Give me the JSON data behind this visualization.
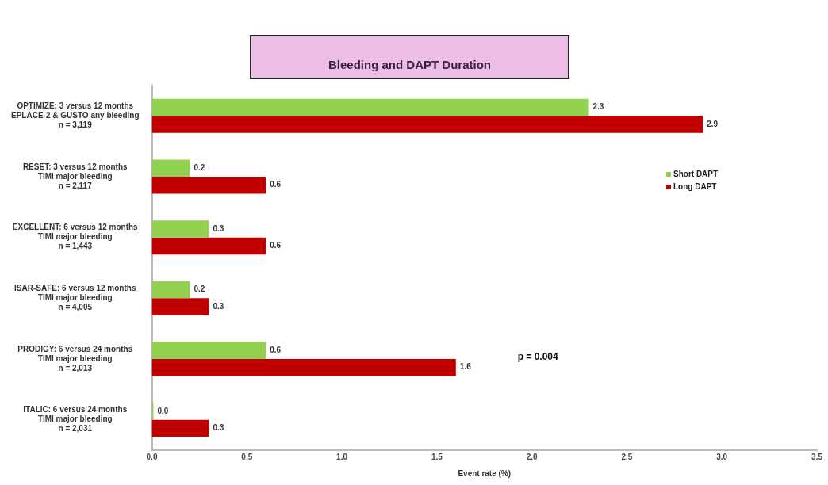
{
  "chart_data": {
    "type": "bar",
    "orientation": "horizontal",
    "title": "Bleeding and DAPT Duration",
    "xlabel": "Event rate (%)",
    "categories": [
      "OPTIMIZE: 3 versus 12 months\nEPLACE-2 & GUSTO any bleeding\nn = 3,119",
      "RESET: 3 versus 12 months\nTIMI major bleeding\nn = 2,117",
      "EXCELLENT: 6 versus 12 months\nTIMI major bleeding\nn = 1,443",
      "ISAR-SAFE: 6 versus 12 months\nTIMI major bleeding\nn = 4,005",
      "PRODIGY: 6 versus 24 months\nTIMI major bleeding\nn = 2,013",
      "ITALIC: 6 versus 24 months\nTIMI major bleeding\nn = 2,031"
    ],
    "series": [
      {
        "name": "Short DAPT",
        "color": "#92d050",
        "values": [
          2.3,
          0.2,
          0.3,
          0.2,
          0.6,
          0
        ],
        "value_labels": [
          "2.3",
          "0.2",
          "0.3",
          "0.2",
          "0.6",
          "0.0"
        ]
      },
      {
        "name": "Long DAPT",
        "color": "#c00000",
        "values": [
          2.9,
          0.6,
          0.6,
          0.3,
          1.6,
          0.3
        ],
        "value_labels": [
          "2.9",
          "0.6",
          "0.6",
          "0.3",
          "1.6",
          "0.3"
        ]
      }
    ],
    "xlim": [
      0,
      3.5
    ],
    "xticks": [
      {
        "value": 0,
        "label": "0.0"
      },
      {
        "value": 0.5,
        "label": "0.5"
      },
      {
        "value": 1,
        "label": "1.0"
      },
      {
        "value": 1.5,
        "label": "1.5"
      },
      {
        "value": 2,
        "label": "2.0"
      },
      {
        "value": 2.5,
        "label": "2.5"
      },
      {
        "value": 3,
        "label": "3.0"
      },
      {
        "value": 3.5,
        "label": "3.5"
      }
    ],
    "grid": false,
    "legend": "top right",
    "annotations": [
      "p = 0.004"
    ]
  }
}
